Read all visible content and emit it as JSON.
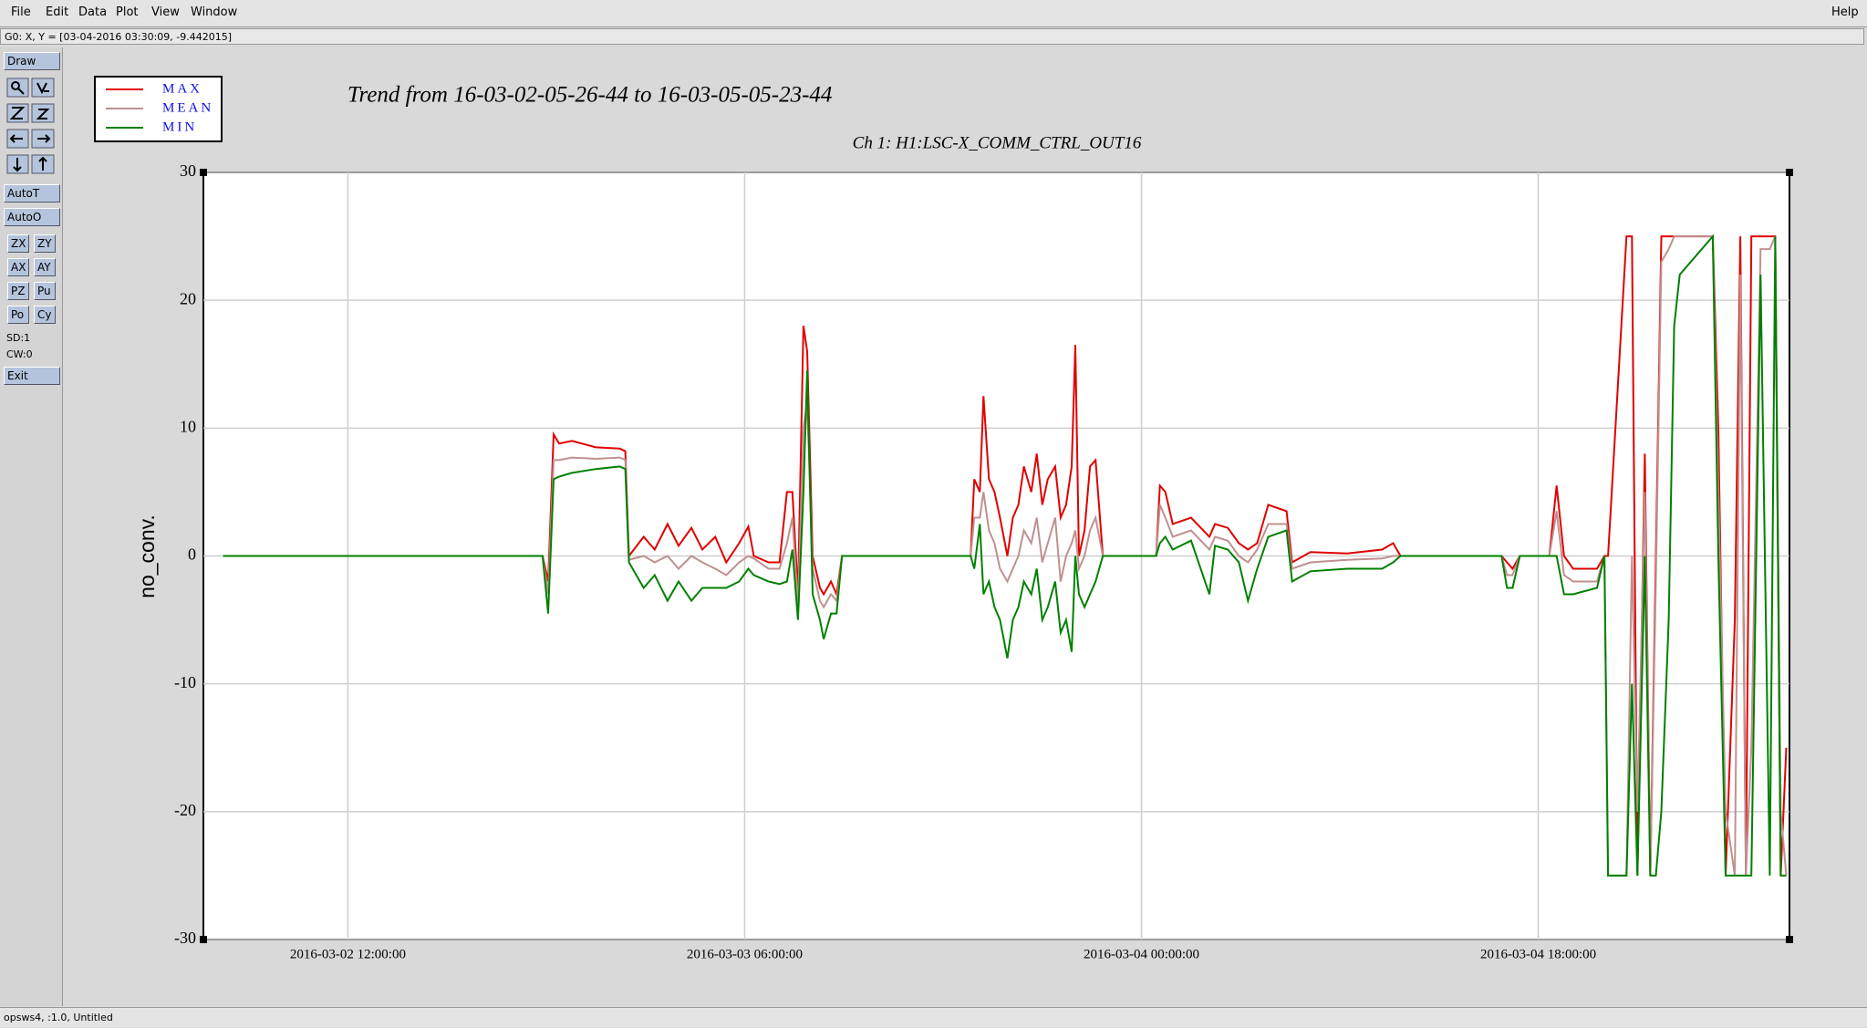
{
  "menu": {
    "items": [
      "File",
      "Edit",
      "Data",
      "Plot",
      "View",
      "Window"
    ],
    "help": "Help"
  },
  "status": "G0: X, Y = [03-04-2016 03:30:09, -9.442015]",
  "toolbar": {
    "draw": "Draw",
    "auto": [
      "AutoT",
      "AutoO"
    ],
    "pairs": [
      [
        "ZX",
        "ZY"
      ],
      [
        "AX",
        "AY"
      ],
      [
        "PZ",
        "Pu"
      ],
      [
        "Po",
        "Cy"
      ]
    ],
    "info": [
      "SD:1",
      "CW:0"
    ],
    "exit": "Exit"
  },
  "footer": "opsws4, :1.0, Untitled",
  "chart_data": {
    "type": "line",
    "title": "Trend from 16-03-02-05-26-44 to 16-03-05-05-23-44",
    "subtitle": "Ch 1: H1:LSC-X_COMM_CTRL_OUT16",
    "y_label": "no_conv.",
    "x": [
      "2016-03-02 06:20:00",
      "2016-03-02 20:50:00",
      "2016-03-02 21:05:00",
      "2016-03-02 21:20:00",
      "2016-03-02 21:35:00",
      "2016-03-02 22:10:00",
      "2016-03-02 23:15:00",
      "2016-03-03 00:20:00",
      "2016-03-03 00:35:00",
      "2016-03-03 00:45:00",
      "2016-03-03 01:25:00",
      "2016-03-03 01:55:00",
      "2016-03-03 02:30:00",
      "2016-03-03 03:00:00",
      "2016-03-03 03:35:00",
      "2016-03-03 04:05:00",
      "2016-03-03 04:40:00",
      "2016-03-03 05:10:00",
      "2016-03-03 05:45:00",
      "2016-03-03 06:10:00",
      "2016-03-03 06:25:00",
      "2016-03-03 07:05:00",
      "2016-03-03 07:35:00",
      "2016-03-03 07:55:00",
      "2016-03-03 08:10:00",
      "2016-03-03 08:25:00",
      "2016-03-03 08:40:00",
      "2016-03-03 08:50:00",
      "2016-03-03 09:05:00",
      "2016-03-03 09:25:00",
      "2016-03-03 09:35:00",
      "2016-03-03 09:55:00",
      "2016-03-03 10:10:00",
      "2016-03-03 10:25:00",
      "2016-03-03 16:15:00",
      "2016-03-03 16:25:00",
      "2016-03-03 16:40:00",
      "2016-03-03 16:50:00",
      "2016-03-03 17:05:00",
      "2016-03-03 17:20:00",
      "2016-03-03 17:35:00",
      "2016-03-03 17:55:00",
      "2016-03-03 18:10:00",
      "2016-03-03 18:25:00",
      "2016-03-03 18:40:00",
      "2016-03-03 19:00:00",
      "2016-03-03 19:15:00",
      "2016-03-03 19:30:00",
      "2016-03-03 19:45:00",
      "2016-03-03 20:05:00",
      "2016-03-03 20:20:00",
      "2016-03-03 20:35:00",
      "2016-03-03 20:50:00",
      "2016-03-03 21:00:00",
      "2016-03-03 21:10:00",
      "2016-03-03 21:25:00",
      "2016-03-03 21:40:00",
      "2016-03-03 21:55:00",
      "2016-03-03 22:15:00",
      "2016-03-04 00:40:00",
      "2016-03-04 00:50:00",
      "2016-03-04 01:05:00",
      "2016-03-04 01:25:00",
      "2016-03-04 02:15:00",
      "2016-03-04 03:05:00",
      "2016-03-04 03:20:00",
      "2016-03-04 03:55:00",
      "2016-03-04 04:25:00",
      "2016-03-04 04:50:00",
      "2016-03-04 05:15:00",
      "2016-03-04 05:45:00",
      "2016-03-04 06:35:00",
      "2016-03-04 06:50:00",
      "2016-03-04 07:40:00",
      "2016-03-04 09:20:00",
      "2016-03-04 10:55:00",
      "2016-03-04 11:25:00",
      "2016-03-04 11:45:00",
      "2016-03-04 16:20:00",
      "2016-03-04 16:35:00",
      "2016-03-04 16:50:00",
      "2016-03-04 17:10:00",
      "2016-03-04 18:30:00",
      "2016-03-04 18:50:00",
      "2016-03-04 19:10:00",
      "2016-03-04 19:35:00",
      "2016-03-04 20:40:00",
      "2016-03-04 21:00:00",
      "2016-03-04 21:10:00",
      "2016-03-04 22:00:00",
      "2016-03-04 22:15:00",
      "2016-03-04 22:30:00",
      "2016-03-04 22:50:00",
      "2016-03-04 23:05:00",
      "2016-03-04 23:20:00",
      "2016-03-04 23:35:00",
      "2016-03-04 23:55:00",
      "2016-03-05 00:10:00",
      "2016-03-05 00:25:00",
      "2016-03-05 01:55:00",
      "2016-03-05 02:10:00",
      "2016-03-05 02:30:00",
      "2016-03-05 02:55:00",
      "2016-03-05 03:10:00",
      "2016-03-05 03:25:00",
      "2016-03-05 03:40:00",
      "2016-03-05 04:05:00",
      "2016-03-05 04:30:00",
      "2016-03-05 04:45:00",
      "2016-03-05 05:00:00",
      "2016-03-05 05:15:00"
    ],
    "series": [
      {
        "name": "MAX",
        "color": "#e00000",
        "values": [
          0,
          0,
          -2,
          9.5,
          8.8,
          9,
          8.5,
          8.4,
          8.2,
          0,
          1.5,
          0.5,
          2.5,
          0.8,
          2.2,
          0.5,
          1.5,
          -0.5,
          1,
          2.3,
          0,
          -0.5,
          -0.5,
          5,
          5,
          -3,
          18,
          16,
          0,
          -2.5,
          -3,
          -2,
          -3,
          0,
          0,
          6,
          5,
          12.5,
          6,
          5,
          3,
          0,
          3,
          4,
          7,
          5,
          8,
          4,
          6,
          7,
          3,
          4,
          7,
          16.5,
          0,
          2,
          7,
          7.5,
          0,
          0,
          5.5,
          5,
          2.5,
          3,
          1.5,
          2.5,
          2.2,
          1,
          0.5,
          1,
          4,
          3.5,
          -0.5,
          0.3,
          0.2,
          0.5,
          1,
          0,
          0,
          -0.5,
          -1,
          0,
          0,
          5.5,
          0,
          -1,
          -1,
          0,
          0,
          25,
          25,
          -25,
          8,
          -25,
          0,
          25,
          25,
          25,
          25,
          25,
          10,
          -25,
          -5,
          25,
          -25,
          25,
          25,
          25,
          25,
          -25,
          -15
        ]
      },
      {
        "name": "MEAN",
        "color": "#c09090",
        "values": [
          0,
          0,
          -3,
          7.5,
          7.5,
          7.7,
          7.6,
          7.7,
          7.5,
          -0.3,
          0,
          -0.5,
          0,
          -1,
          0,
          -0.5,
          -1,
          -1.5,
          -0.5,
          0,
          -0.2,
          -1,
          -1,
          1,
          3,
          -4,
          10,
          12,
          -1,
          -3.5,
          -4,
          -3,
          -3.5,
          0,
          0,
          3,
          3,
          5,
          2,
          1,
          -1,
          -2,
          -1,
          0,
          2,
          1,
          3,
          -0.5,
          1,
          3,
          -2,
          0,
          1,
          2,
          -1,
          0,
          2,
          3,
          0,
          0,
          4,
          3,
          1.5,
          2,
          0.5,
          1.5,
          1.2,
          0,
          -0.5,
          0.5,
          2.5,
          2.5,
          -1,
          -0.5,
          -0.3,
          -0.2,
          0,
          0,
          0,
          -1.5,
          -1.5,
          0,
          0,
          3.5,
          -1.5,
          -2,
          -2,
          0,
          -25,
          -25,
          0,
          -20,
          5,
          -25,
          -2,
          23,
          24,
          25,
          25,
          25,
          5,
          -20,
          -25,
          22,
          -25,
          -15,
          24,
          24,
          25,
          -20,
          -25
        ]
      },
      {
        "name": "MIN",
        "color": "#008000",
        "values": [
          0,
          0,
          -4.5,
          6,
          6.2,
          6.5,
          6.8,
          7,
          6.8,
          -0.5,
          -2.5,
          -1.5,
          -3.5,
          -2,
          -3.5,
          -2.5,
          -2.5,
          -2.5,
          -2,
          -1,
          -1.5,
          -2,
          -2.2,
          -2,
          0.5,
          -5,
          5,
          14.5,
          -3,
          -5,
          -6.5,
          -4.5,
          -4.5,
          0,
          0,
          -1,
          2.5,
          -3,
          -2,
          -4,
          -5,
          -8,
          -5,
          -4,
          -2,
          -3,
          -1,
          -5,
          -4,
          -2,
          -6,
          -5,
          -7.5,
          0,
          -3,
          -4,
          -3,
          -2,
          0,
          0,
          1,
          1.5,
          0.5,
          1.2,
          -3,
          0.8,
          0.5,
          -0.5,
          -3.5,
          -1,
          1.5,
          2,
          -2,
          -1.2,
          -1,
          -1,
          -0.5,
          0,
          0,
          -2.5,
          -2.5,
          0,
          0,
          0,
          -3,
          -3,
          -2.5,
          0,
          -25,
          -25,
          -10,
          -25,
          0,
          -25,
          -25,
          -20,
          -5,
          18,
          22,
          25,
          0,
          -25,
          -25,
          -25,
          -25,
          -25,
          22,
          -25,
          25,
          -25,
          -25
        ]
      }
    ],
    "xlim": [
      "2016-03-02 05:26:44",
      "2016-03-05 05:23:44"
    ],
    "xticks": [
      "2016-03-02 12:00:00",
      "2016-03-03 06:00:00",
      "2016-03-04 00:00:00",
      "2016-03-04 18:00:00"
    ],
    "ylim": [
      -30,
      30
    ],
    "yticks": [
      -30,
      -20,
      -10,
      0,
      10,
      20,
      30
    ],
    "grid": true,
    "legend": "top-left"
  }
}
